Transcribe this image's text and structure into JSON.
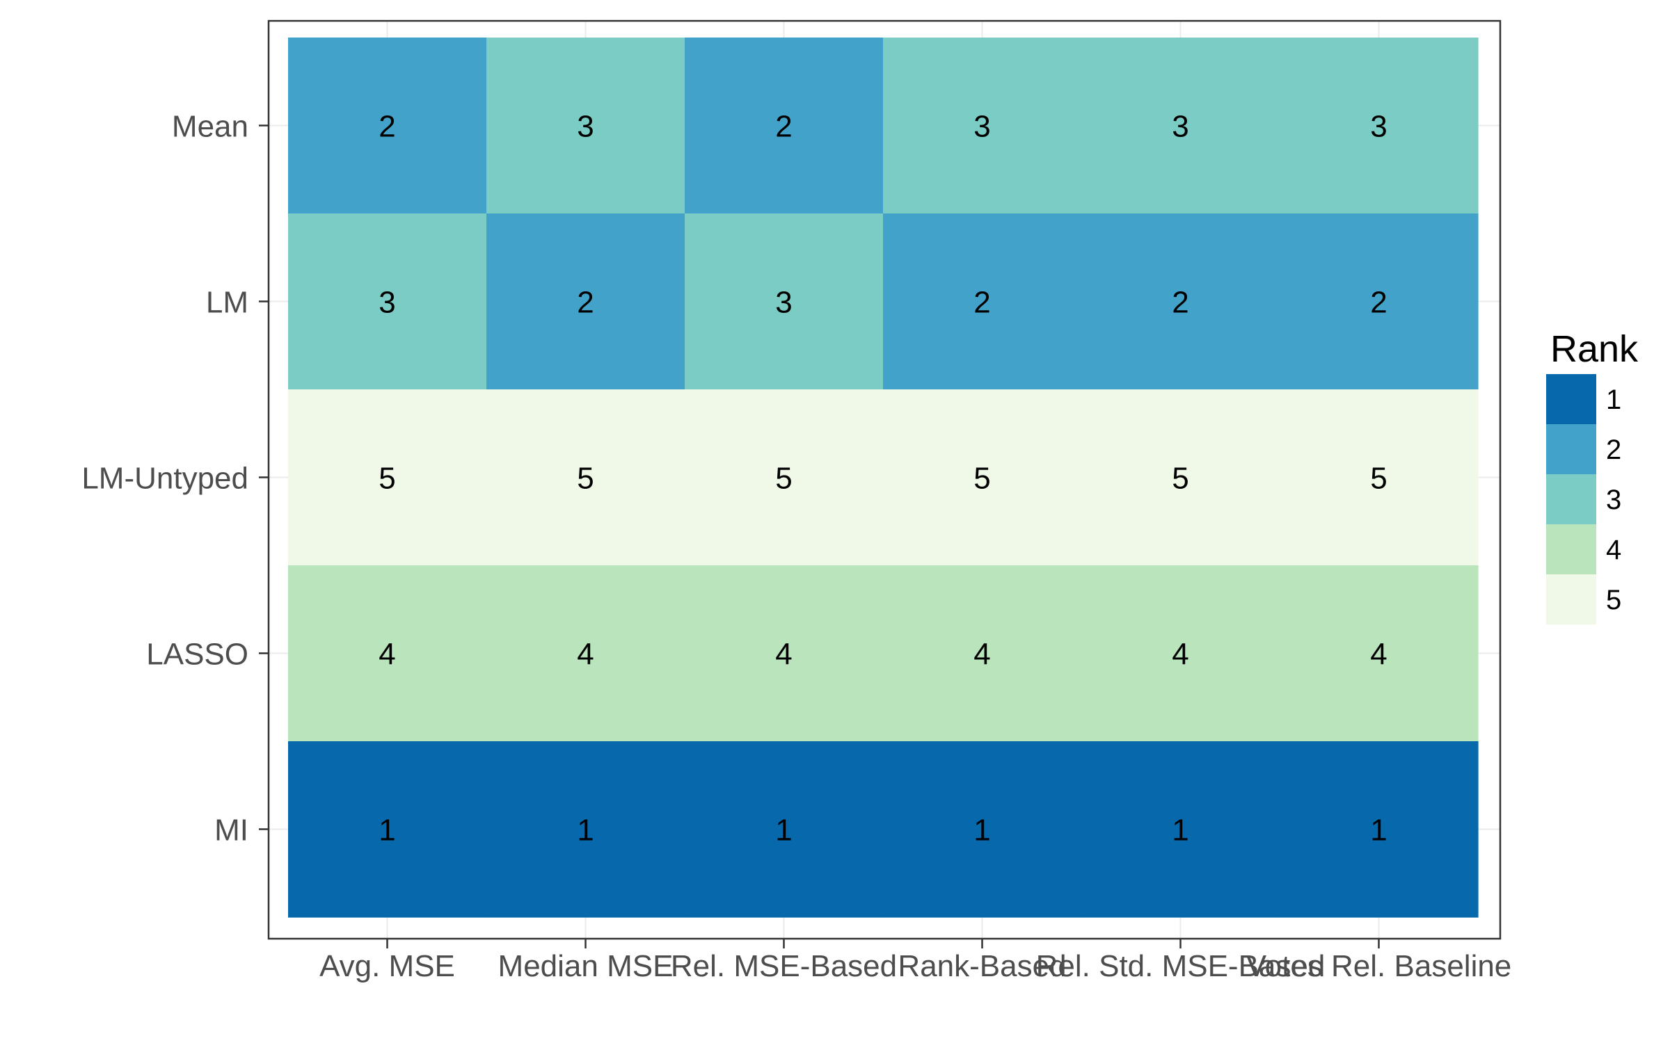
{
  "chart_data": {
    "type": "heatmap",
    "title": "",
    "xlabel": "",
    "ylabel": "",
    "x_categories": [
      "Avg. MSE",
      "Median MSE",
      "Rel. MSE-Based",
      "Rank-Based",
      "Rel. Std. MSE-Based",
      "Votes Rel. Baseline"
    ],
    "y_categories": [
      "Mean",
      "LM",
      "LM-Untyped",
      "LASSO",
      "MI"
    ],
    "values": [
      [
        2,
        3,
        2,
        3,
        3,
        3
      ],
      [
        3,
        2,
        3,
        2,
        2,
        2
      ],
      [
        5,
        5,
        5,
        5,
        5,
        5
      ],
      [
        4,
        4,
        4,
        4,
        4,
        4
      ],
      [
        1,
        1,
        1,
        1,
        1,
        1
      ]
    ],
    "grid": true,
    "legend": {
      "title": "Rank",
      "position": "right",
      "entries": [
        {
          "label": "1",
          "color": "#0868ac"
        },
        {
          "label": "2",
          "color": "#43a2ca"
        },
        {
          "label": "3",
          "color": "#7bccc4"
        },
        {
          "label": "4",
          "color": "#bae4bc"
        },
        {
          "label": "5",
          "color": "#f0f9e8"
        }
      ]
    }
  }
}
